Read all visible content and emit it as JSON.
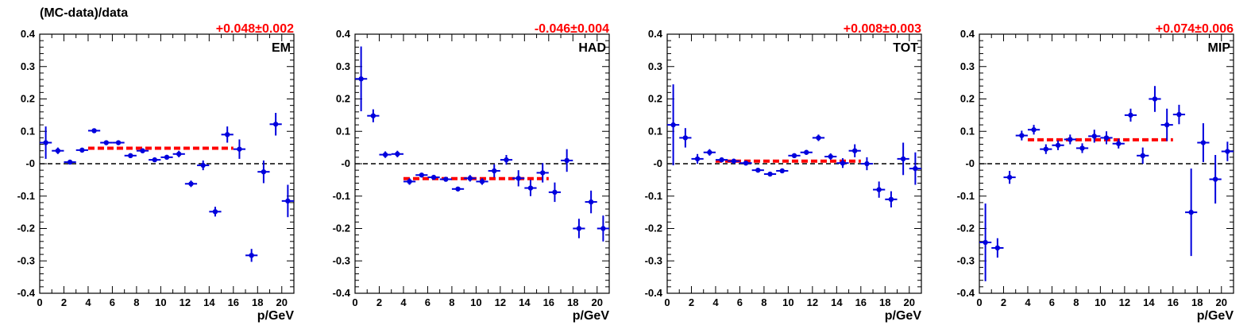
{
  "figure": {
    "ylabel": "(MC-data)/data"
  },
  "chart_data": [
    {
      "type": "scatter",
      "title": "EM",
      "fit_text": "+0.048±0.002",
      "fit_value": 0.048,
      "fit_range": [
        4,
        16
      ],
      "xlabel": "p/GeV",
      "ylabel": "(MC-data)/data",
      "xlim": [
        0,
        21
      ],
      "ylim": [
        -0.4,
        0.4
      ],
      "x_ticks": [
        0,
        2,
        4,
        6,
        8,
        10,
        12,
        14,
        16,
        18,
        20
      ],
      "y_ticks": [
        -0.4,
        -0.3,
        -0.2,
        -0.1,
        0,
        0.1,
        0.2,
        0.3,
        0.4
      ],
      "y_tick_labels": [
        "-0.4",
        "-0.3",
        "-0.2",
        "-0.1",
        "-0",
        "0.1",
        "0.2",
        "0.3",
        "0.4"
      ],
      "points": [
        {
          "x": 0.5,
          "y": 0.065,
          "err": 0.05
        },
        {
          "x": 1.5,
          "y": 0.04,
          "err": 0.01
        },
        {
          "x": 2.5,
          "y": 0.005,
          "err": 0.005
        },
        {
          "x": 3.5,
          "y": 0.042,
          "err": 0.005
        },
        {
          "x": 4.5,
          "y": 0.102,
          "err": 0.005
        },
        {
          "x": 5.5,
          "y": 0.065,
          "err": 0.005
        },
        {
          "x": 6.5,
          "y": 0.065,
          "err": 0.005
        },
        {
          "x": 7.5,
          "y": 0.025,
          "err": 0.005
        },
        {
          "x": 8.5,
          "y": 0.04,
          "err": 0.005
        },
        {
          "x": 9.5,
          "y": 0.012,
          "err": 0.005
        },
        {
          "x": 10.5,
          "y": 0.02,
          "err": 0.005
        },
        {
          "x": 11.5,
          "y": 0.03,
          "err": 0.01
        },
        {
          "x": 12.5,
          "y": -0.062,
          "err": 0.01
        },
        {
          "x": 13.5,
          "y": -0.005,
          "err": 0.015
        },
        {
          "x": 14.5,
          "y": -0.148,
          "err": 0.015
        },
        {
          "x": 15.5,
          "y": 0.09,
          "err": 0.025
        },
        {
          "x": 16.5,
          "y": 0.045,
          "err": 0.03
        },
        {
          "x": 17.5,
          "y": -0.283,
          "err": 0.02
        },
        {
          "x": 18.5,
          "y": -0.025,
          "err": 0.035
        },
        {
          "x": 19.5,
          "y": 0.122,
          "err": 0.035
        },
        {
          "x": 20.5,
          "y": -0.115,
          "err": 0.05
        }
      ]
    },
    {
      "type": "scatter",
      "title": "HAD",
      "fit_text": "-0.046±0.004",
      "fit_value": -0.046,
      "fit_range": [
        4,
        16
      ],
      "xlabel": "p/GeV",
      "ylabel": "",
      "xlim": [
        0,
        21
      ],
      "ylim": [
        -0.4,
        0.4
      ],
      "x_ticks": [
        0,
        2,
        4,
        6,
        8,
        10,
        12,
        14,
        16,
        18,
        20
      ],
      "y_ticks": [
        -0.4,
        -0.3,
        -0.2,
        -0.1,
        0,
        0.1,
        0.2,
        0.3,
        0.4
      ],
      "y_tick_labels": [
        "-0.4",
        "-0.3",
        "-0.2",
        "-0.1",
        "-0",
        "0.1",
        "0.2",
        "0.3",
        "0.4"
      ],
      "points": [
        {
          "x": 0.5,
          "y": 0.262,
          "err": 0.1
        },
        {
          "x": 1.5,
          "y": 0.148,
          "err": 0.02
        },
        {
          "x": 2.5,
          "y": 0.028,
          "err": 0.01
        },
        {
          "x": 3.5,
          "y": 0.03,
          "err": 0.01
        },
        {
          "x": 4.5,
          "y": -0.055,
          "err": 0.01
        },
        {
          "x": 5.5,
          "y": -0.035,
          "err": 0.005
        },
        {
          "x": 6.5,
          "y": -0.042,
          "err": 0.005
        },
        {
          "x": 7.5,
          "y": -0.048,
          "err": 0.005
        },
        {
          "x": 8.5,
          "y": -0.078,
          "err": 0.005
        },
        {
          "x": 9.5,
          "y": -0.045,
          "err": 0.01
        },
        {
          "x": 10.5,
          "y": -0.055,
          "err": 0.01
        },
        {
          "x": 11.5,
          "y": -0.022,
          "err": 0.02
        },
        {
          "x": 12.5,
          "y": 0.012,
          "err": 0.015
        },
        {
          "x": 13.5,
          "y": -0.045,
          "err": 0.025
        },
        {
          "x": 14.5,
          "y": -0.075,
          "err": 0.025
        },
        {
          "x": 15.5,
          "y": -0.028,
          "err": 0.03
        },
        {
          "x": 16.5,
          "y": -0.088,
          "err": 0.03
        },
        {
          "x": 17.5,
          "y": 0.01,
          "err": 0.035
        },
        {
          "x": 18.5,
          "y": -0.2,
          "err": 0.03
        },
        {
          "x": 19.5,
          "y": -0.118,
          "err": 0.035
        },
        {
          "x": 20.5,
          "y": -0.2,
          "err": 0.04
        }
      ]
    },
    {
      "type": "scatter",
      "title": "TOT",
      "fit_text": "+0.008±0.003",
      "fit_value": 0.008,
      "fit_range": [
        4,
        16
      ],
      "xlabel": "p/GeV",
      "ylabel": "",
      "xlim": [
        0,
        21
      ],
      "ylim": [
        -0.4,
        0.4
      ],
      "x_ticks": [
        0,
        2,
        4,
        6,
        8,
        10,
        12,
        14,
        16,
        18,
        20
      ],
      "y_ticks": [
        -0.4,
        -0.3,
        -0.2,
        -0.1,
        0,
        0.1,
        0.2,
        0.3,
        0.4
      ],
      "y_tick_labels": [
        "-0.4",
        "-0.3",
        "-0.2",
        "-0.1",
        "-0",
        "0.1",
        "0.2",
        "0.3",
        "0.4"
      ],
      "points": [
        {
          "x": 0.5,
          "y": 0.12,
          "err": 0.125
        },
        {
          "x": 1.5,
          "y": 0.08,
          "err": 0.03
        },
        {
          "x": 2.5,
          "y": 0.015,
          "err": 0.015
        },
        {
          "x": 3.5,
          "y": 0.035,
          "err": 0.01
        },
        {
          "x": 4.5,
          "y": 0.012,
          "err": 0.005
        },
        {
          "x": 5.5,
          "y": 0.008,
          "err": 0.005
        },
        {
          "x": 6.5,
          "y": 0.002,
          "err": 0.005
        },
        {
          "x": 7.5,
          "y": -0.02,
          "err": 0.005
        },
        {
          "x": 8.5,
          "y": -0.032,
          "err": 0.005
        },
        {
          "x": 9.5,
          "y": -0.022,
          "err": 0.005
        },
        {
          "x": 10.5,
          "y": 0.025,
          "err": 0.005
        },
        {
          "x": 11.5,
          "y": 0.035,
          "err": 0.005
        },
        {
          "x": 12.5,
          "y": 0.08,
          "err": 0.01
        },
        {
          "x": 13.5,
          "y": 0.022,
          "err": 0.01
        },
        {
          "x": 14.5,
          "y": 0.002,
          "err": 0.015
        },
        {
          "x": 15.5,
          "y": 0.04,
          "err": 0.02
        },
        {
          "x": 16.5,
          "y": 0.0,
          "err": 0.02
        },
        {
          "x": 17.5,
          "y": -0.08,
          "err": 0.025
        },
        {
          "x": 18.5,
          "y": -0.11,
          "err": 0.025
        },
        {
          "x": 19.5,
          "y": 0.015,
          "err": 0.05
        },
        {
          "x": 20.5,
          "y": -0.015,
          "err": 0.05
        }
      ]
    },
    {
      "type": "scatter",
      "title": "MIP",
      "fit_text": "+0.074±0.006",
      "fit_value": 0.074,
      "fit_range": [
        4,
        16
      ],
      "xlabel": "p/GeV",
      "ylabel": "",
      "xlim": [
        0,
        21
      ],
      "ylim": [
        -0.4,
        0.4
      ],
      "x_ticks": [
        0,
        2,
        4,
        6,
        8,
        10,
        12,
        14,
        16,
        18,
        20
      ],
      "y_ticks": [
        -0.4,
        -0.3,
        -0.2,
        -0.1,
        0,
        0.1,
        0.2,
        0.3,
        0.4
      ],
      "y_tick_labels": [
        "-0.4",
        "-0.3",
        "-0.2",
        "-0.1",
        "-0",
        "0.1",
        "0.2",
        "0.3",
        "0.4"
      ],
      "points": [
        {
          "x": 0.5,
          "y": -0.243,
          "err": 0.12
        },
        {
          "x": 1.5,
          "y": -0.26,
          "err": 0.03
        },
        {
          "x": 2.5,
          "y": -0.042,
          "err": 0.02
        },
        {
          "x": 3.5,
          "y": 0.087,
          "err": 0.015
        },
        {
          "x": 4.5,
          "y": 0.105,
          "err": 0.015
        },
        {
          "x": 5.5,
          "y": 0.045,
          "err": 0.015
        },
        {
          "x": 6.5,
          "y": 0.057,
          "err": 0.015
        },
        {
          "x": 7.5,
          "y": 0.075,
          "err": 0.015
        },
        {
          "x": 8.5,
          "y": 0.048,
          "err": 0.015
        },
        {
          "x": 9.5,
          "y": 0.085,
          "err": 0.02
        },
        {
          "x": 10.5,
          "y": 0.08,
          "err": 0.02
        },
        {
          "x": 11.5,
          "y": 0.062,
          "err": 0.015
        },
        {
          "x": 12.5,
          "y": 0.15,
          "err": 0.02
        },
        {
          "x": 13.5,
          "y": 0.025,
          "err": 0.025
        },
        {
          "x": 14.5,
          "y": 0.2,
          "err": 0.04
        },
        {
          "x": 15.5,
          "y": 0.12,
          "err": 0.05
        },
        {
          "x": 16.5,
          "y": 0.152,
          "err": 0.03
        },
        {
          "x": 17.5,
          "y": -0.15,
          "err": 0.135
        },
        {
          "x": 18.5,
          "y": 0.065,
          "err": 0.06
        },
        {
          "x": 19.5,
          "y": -0.048,
          "err": 0.075
        },
        {
          "x": 20.5,
          "y": 0.038,
          "err": 0.03
        }
      ]
    }
  ]
}
